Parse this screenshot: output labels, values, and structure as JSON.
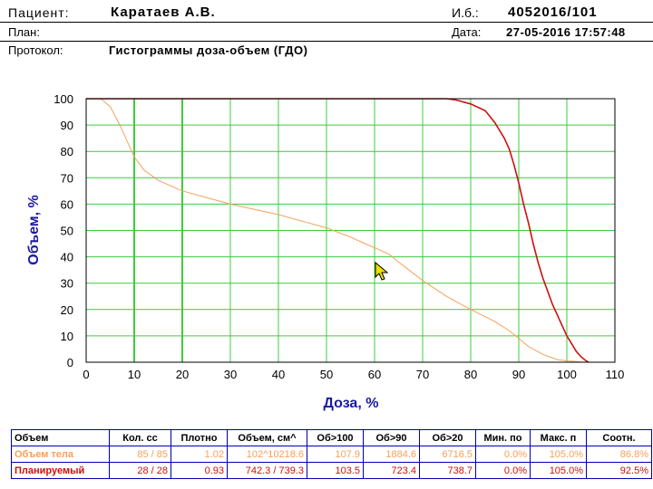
{
  "header": {
    "patient_label": "Пациент:",
    "patient_value": "Каратаев А.В.",
    "id_label": "И.б.:",
    "id_value": "4052016/101",
    "plan_label": "План:",
    "date_label": "Дата:",
    "date_value": "27-05-2016 17:57:48",
    "protocol_label": "Протокол:",
    "protocol_value": "Гистограммы доза-объем (ГДО)"
  },
  "colors": {
    "body_series": "#f5a05a",
    "planned_series": "#cc1010",
    "grid": "#3ccc3c",
    "axis_label": "#1a1aa0",
    "plot_border": "#000000"
  },
  "chart_data": {
    "type": "line",
    "xlabel": "Доза, %",
    "ylabel": "Объем, %",
    "xlim": [
      0,
      110
    ],
    "ylim": [
      0,
      100
    ],
    "xticks": [
      "0",
      "10",
      "20",
      "30",
      "40",
      "50",
      "60",
      "70",
      "80",
      "90",
      "100",
      "110"
    ],
    "yticks": [
      "0",
      "10",
      "20",
      "30",
      "40",
      "50",
      "60",
      "70",
      "80",
      "90",
      "100"
    ],
    "grid": true,
    "series": [
      {
        "key": "body",
        "x": [
          0,
          3,
          5,
          7,
          9,
          10,
          12,
          15,
          20,
          25,
          30,
          35,
          40,
          45,
          50,
          55,
          58,
          60,
          63,
          65,
          70,
          75,
          80,
          85,
          88,
          90,
          92,
          95,
          98,
          100,
          103,
          104
        ],
        "y": [
          100,
          100,
          97,
          90,
          82,
          78,
          73,
          69,
          65,
          62.5,
          60,
          58,
          56,
          53.5,
          51,
          47.5,
          45,
          43.5,
          41,
          38,
          31,
          25,
          20,
          15.5,
          12,
          9,
          6,
          3,
          1,
          0.5,
          0.1,
          0
        ]
      },
      {
        "key": "planned",
        "x": [
          0,
          70,
          75,
          77,
          80,
          83,
          85,
          87,
          88,
          89,
          90,
          91,
          92,
          93,
          94,
          95,
          96,
          97,
          98,
          99,
          100,
          101,
          102,
          103,
          104,
          104.5
        ],
        "y": [
          100,
          100,
          100,
          99.5,
          98,
          95.5,
          91,
          85,
          81,
          75,
          68,
          60,
          53,
          45,
          38,
          32,
          27,
          22,
          18,
          14,
          10,
          7,
          4,
          2,
          0.5,
          0
        ]
      }
    ]
  },
  "table": {
    "headers": [
      "Объем",
      "Кол. сс",
      "Плотно",
      "Объем, см^",
      "Об>100",
      "Об>90",
      "Об>20",
      "Мин. по",
      "Макс. п",
      "Соотн."
    ],
    "rows": [
      {
        "cells": [
          "Объем тела",
          "85 / 85",
          "1.02",
          "102^10218.6",
          "107.9",
          "1884.6",
          "6716.5",
          "0.0%",
          "105.0%",
          "86.8%"
        ],
        "color": "#f5a05a"
      },
      {
        "cells": [
          "Планируемый",
          "28 / 28",
          "0.93",
          "742.3 / 739.3",
          "103.5",
          "723.4",
          "738.7",
          "0.0%",
          "105.0%",
          "92.5%"
        ],
        "color": "#cc1010"
      }
    ]
  }
}
